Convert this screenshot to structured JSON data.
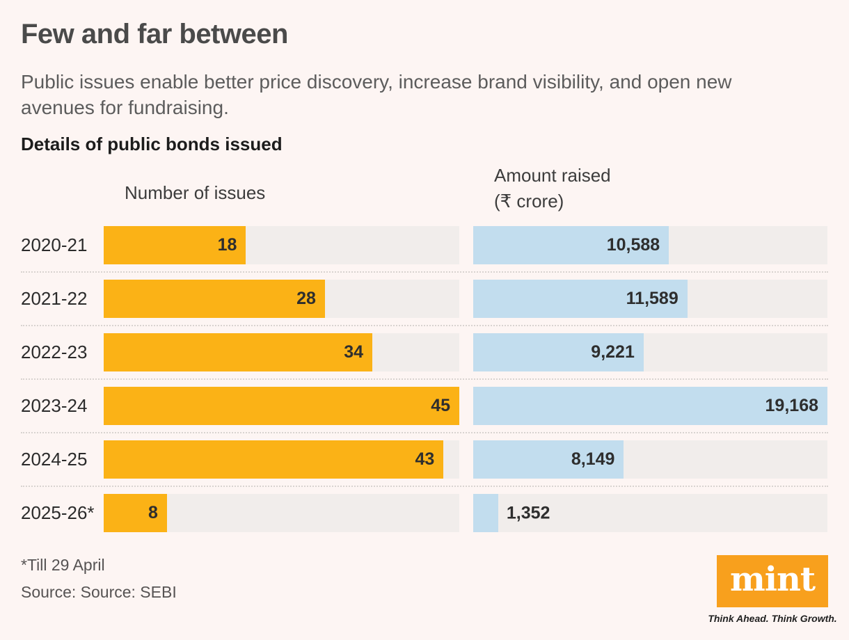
{
  "header": {
    "title": "Few and far between",
    "subtitle": "Public issues enable better price discovery, increase brand visibility, and open new avenues for fundraising.",
    "chart_heading": "Details of public bonds issued"
  },
  "chart_data": {
    "type": "bar",
    "orientation": "horizontal",
    "title": "Details of public bonds issued",
    "grid": "dotted-row-separators",
    "legend_position": "none",
    "categories": [
      "2020-21",
      "2021-22",
      "2022-23",
      "2023-24",
      "2024-25",
      "2025-26*"
    ],
    "series": [
      {
        "name": "Number of issues",
        "header_lines": [
          "Number of issues"
        ],
        "values": [
          18,
          28,
          34,
          45,
          43,
          8
        ],
        "labels": [
          "18",
          "28",
          "34",
          "45",
          "43",
          "8"
        ],
        "axis_max": 45,
        "bar_color": "#FBB216"
      },
      {
        "name": "Amount raised (₹ crore)",
        "header_lines": [
          "Amount raised",
          "(₹ crore)"
        ],
        "values": [
          10588,
          11589,
          9221,
          19168,
          8149,
          1352
        ],
        "labels": [
          "10,588",
          "11,589",
          "9,221",
          "19,168",
          "8,149",
          "1,352"
        ],
        "axis_max": 19168,
        "bar_color": "#C2DDEE"
      }
    ],
    "track_color": "#F1EDEB"
  },
  "footer": {
    "footnote": "*Till 29 April",
    "source": "Source: Source: SEBI"
  },
  "branding": {
    "logo_text": "mint",
    "tagline": "Think Ahead. Think Growth.",
    "logo_color": "#F8A01D"
  },
  "colors": {
    "background": "#FDF5F3",
    "bar_orange": "#FBB216",
    "bar_blue": "#C2DDEE",
    "bar_track": "#F1EDEB",
    "separator_dots": "#D8D3D0"
  }
}
